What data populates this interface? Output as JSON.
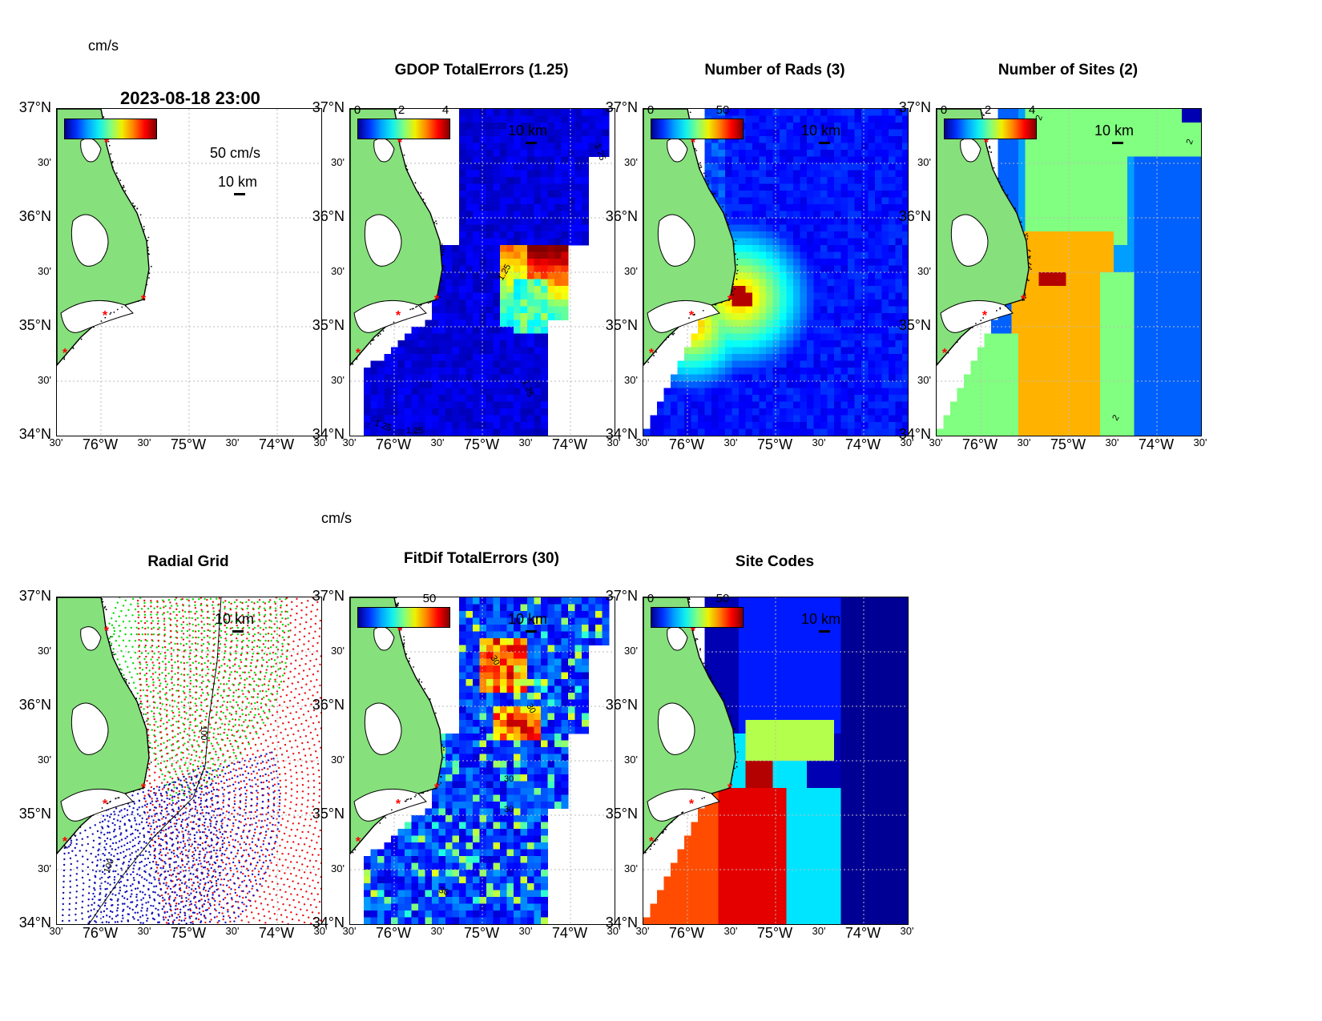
{
  "figure_title": "2023-08-18 23:00",
  "panels": [
    {
      "id": "totals",
      "title": "",
      "colorbar_ticks": [],
      "colorbar_unit": "cm/s",
      "scale_text": "10 km",
      "vector_scale": "50 cm/s",
      "fill": "vectors"
    },
    {
      "id": "gdop",
      "title": "GDOP TotalErrors (1.25)",
      "colorbar_ticks": [
        "0",
        "2",
        "4"
      ],
      "colorbar_unit": "",
      "scale_text": "10 km",
      "contour_labels": [
        "1.25",
        "1.25",
        "1.25",
        "1.25",
        "1.25"
      ],
      "fill": "gdop"
    },
    {
      "id": "nrads",
      "title": "Number of Rads (3)",
      "colorbar_ticks": [
        "0",
        "50"
      ],
      "colorbar_unit": "",
      "scale_text": "10 km",
      "fill": "nrads"
    },
    {
      "id": "nsites",
      "title": "Number of Sites (2)",
      "colorbar_ticks": [
        "0",
        "2",
        "4"
      ],
      "colorbar_unit": "",
      "scale_text": "10 km",
      "contour_labels": [
        "2",
        "2",
        "2"
      ],
      "fill": "nsites"
    },
    {
      "id": "radgrid",
      "title": "Radial Grid",
      "colorbar_ticks": [],
      "colorbar_unit": "",
      "scale_text": "10 km",
      "contour_labels": [
        "100",
        "100"
      ],
      "fill": "radgrid"
    },
    {
      "id": "fitdif",
      "title": "FitDif TotalErrors (30)",
      "colorbar_ticks": [
        "50"
      ],
      "colorbar_unit": "cm/s",
      "scale_text": "10 km",
      "contour_labels": [
        "30",
        "30",
        "30",
        "30",
        "30"
      ],
      "fill": "fitdif"
    },
    {
      "id": "sitecodes",
      "title": "Site Codes",
      "colorbar_ticks": [
        "0",
        "50"
      ],
      "colorbar_unit": "",
      "scale_text": "10 km",
      "fill": "sitecodes"
    }
  ],
  "axes": {
    "lat_labels": [
      "37°N",
      "30'",
      "36°N",
      "30'",
      "35°N",
      "30'",
      "34°N"
    ],
    "lon_labels": [
      "30'",
      "76°W",
      "30'",
      "75°W",
      "30'",
      "74°W",
      "30'"
    ]
  },
  "colors": {
    "land": "#86e07c",
    "site_marker": "#ff0000",
    "coast": "#000000"
  }
}
